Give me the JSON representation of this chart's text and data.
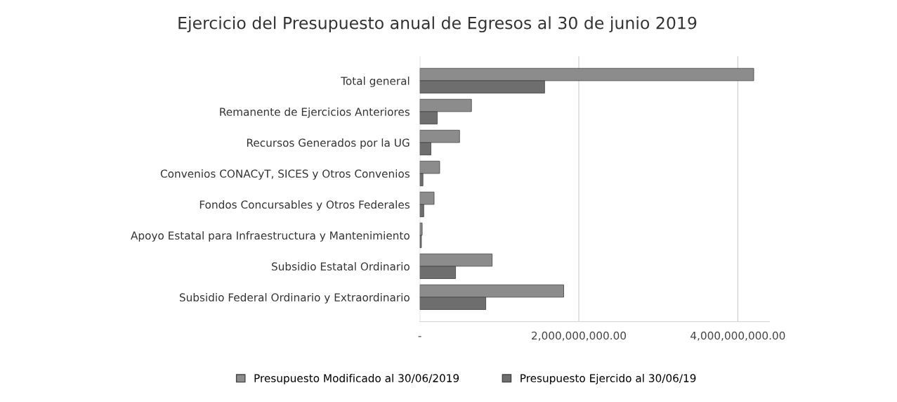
{
  "chart_data": {
    "type": "bar",
    "orientation": "horizontal",
    "title": "Ejercicio del Presupuesto anual de Egresos al 30 de junio 2019",
    "categories": [
      "Total general",
      "Remanente de Ejercicios Anteriores",
      "Recursos Generados por la UG",
      "Convenios CONACyT, SICES y Otros Convenios",
      "Fondos Concursables y Otros Federales",
      "Apoyo Estatal para Infraestructura y Mantenimiento",
      "Subsidio Estatal Ordinario",
      "Subsidio Federal Ordinario y Extraordinario"
    ],
    "series": [
      {
        "name": "Presupuesto Modificado al 30/06/2019",
        "color": "#8c8c8c",
        "values": [
          4200000000,
          650000000,
          500000000,
          250000000,
          180000000,
          30000000,
          910000000,
          1810000000
        ]
      },
      {
        "name": "Presupuesto Ejercido al 30/06/19",
        "color": "#6e6e6e",
        "values": [
          1570000000,
          220000000,
          140000000,
          40000000,
          50000000,
          20000000,
          450000000,
          830000000
        ]
      }
    ],
    "xlim": [
      0,
      4400000000
    ],
    "xticks": [
      {
        "value": 0,
        "label": "-"
      },
      {
        "value": 2000000000,
        "label": "2,000,000,000.00"
      },
      {
        "value": 4000000000,
        "label": "4,000,000,000.00"
      }
    ],
    "grid": "x",
    "legend": "bottom"
  }
}
